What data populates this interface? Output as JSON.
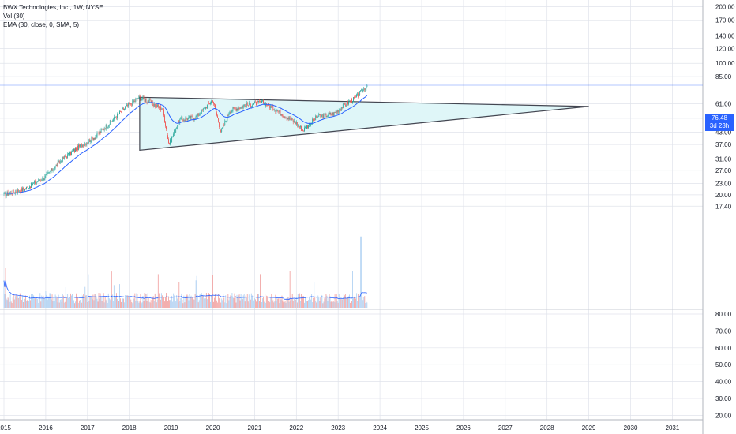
{
  "legend": {
    "symbol": "BWX Technologies, Inc., 1W, NYSE",
    "vol": "Vol (30)",
    "ema": "EMA (30, close, 0, SMA, 5)"
  },
  "price_tag": {
    "price": "76.48",
    "countdown": "3d 23h"
  },
  "colors": {
    "up": "#26a69a",
    "down": "#ef5350",
    "ema": "#2962ff",
    "triangle_fill": "#dff6f8",
    "triangle_line": "#434651",
    "vol_up": "#b3d3f3",
    "vol_down": "#f2a7a6",
    "grid": "#e0e3eb",
    "pricetag": "#2962ff"
  },
  "chart_data": {
    "type": "candlestick",
    "title": "BWX Technologies, Inc., 1W, NYSE",
    "x_ticks": [
      "2015",
      "2016",
      "2017",
      "2018",
      "2019",
      "2020",
      "2021",
      "2022",
      "2023",
      "2024",
      "2025",
      "2026",
      "2027",
      "2028",
      "2029",
      "2030",
      "2031"
    ],
    "price_ticks": [
      "200.00",
      "170.00",
      "140.00",
      "120.00",
      "100.00",
      "85.00",
      "61.00",
      "51.00",
      "43.00",
      "37.00",
      "31.00",
      "27.00",
      "23.00",
      "20.00",
      "17.40"
    ],
    "volume_ticks": [
      "80.00",
      "70.00",
      "60.00",
      "50.00",
      "40.00",
      "30.00",
      "20.00"
    ],
    "last_price": 76.48,
    "price_anchors": [
      {
        "x": 2015.0,
        "y": 20.0
      },
      {
        "x": 2015.5,
        "y": 21.5
      },
      {
        "x": 2016.0,
        "y": 25.0
      },
      {
        "x": 2016.4,
        "y": 31.0
      },
      {
        "x": 2016.8,
        "y": 36.0
      },
      {
        "x": 2017.2,
        "y": 41.0
      },
      {
        "x": 2017.6,
        "y": 50.0
      },
      {
        "x": 2017.9,
        "y": 58.0
      },
      {
        "x": 2018.25,
        "y": 66.0
      },
      {
        "x": 2018.5,
        "y": 62.0
      },
      {
        "x": 2018.8,
        "y": 57.0
      },
      {
        "x": 2018.95,
        "y": 37.0
      },
      {
        "x": 2019.2,
        "y": 50.0
      },
      {
        "x": 2019.6,
        "y": 52.0
      },
      {
        "x": 2020.0,
        "y": 64.0
      },
      {
        "x": 2020.2,
        "y": 43.0
      },
      {
        "x": 2020.4,
        "y": 56.0
      },
      {
        "x": 2020.8,
        "y": 60.0
      },
      {
        "x": 2021.2,
        "y": 62.0
      },
      {
        "x": 2021.5,
        "y": 57.0
      },
      {
        "x": 2021.7,
        "y": 53.0
      },
      {
        "x": 2022.0,
        "y": 48.0
      },
      {
        "x": 2022.15,
        "y": 44.0
      },
      {
        "x": 2022.5,
        "y": 52.0
      },
      {
        "x": 2022.9,
        "y": 54.0
      },
      {
        "x": 2023.1,
        "y": 59.0
      },
      {
        "x": 2023.4,
        "y": 65.0
      },
      {
        "x": 2023.7,
        "y": 76.48
      }
    ],
    "ema_period": 30,
    "triangle": [
      {
        "x": 2018.25,
        "y": 66.0
      },
      {
        "x": 2029.0,
        "y": 59.0
      },
      {
        "x": 2018.25,
        "y": 34.5
      }
    ],
    "price_ylim": [
      17.4,
      200.0
    ],
    "volume_ylim": [
      20,
      80
    ],
    "scale": "log"
  }
}
